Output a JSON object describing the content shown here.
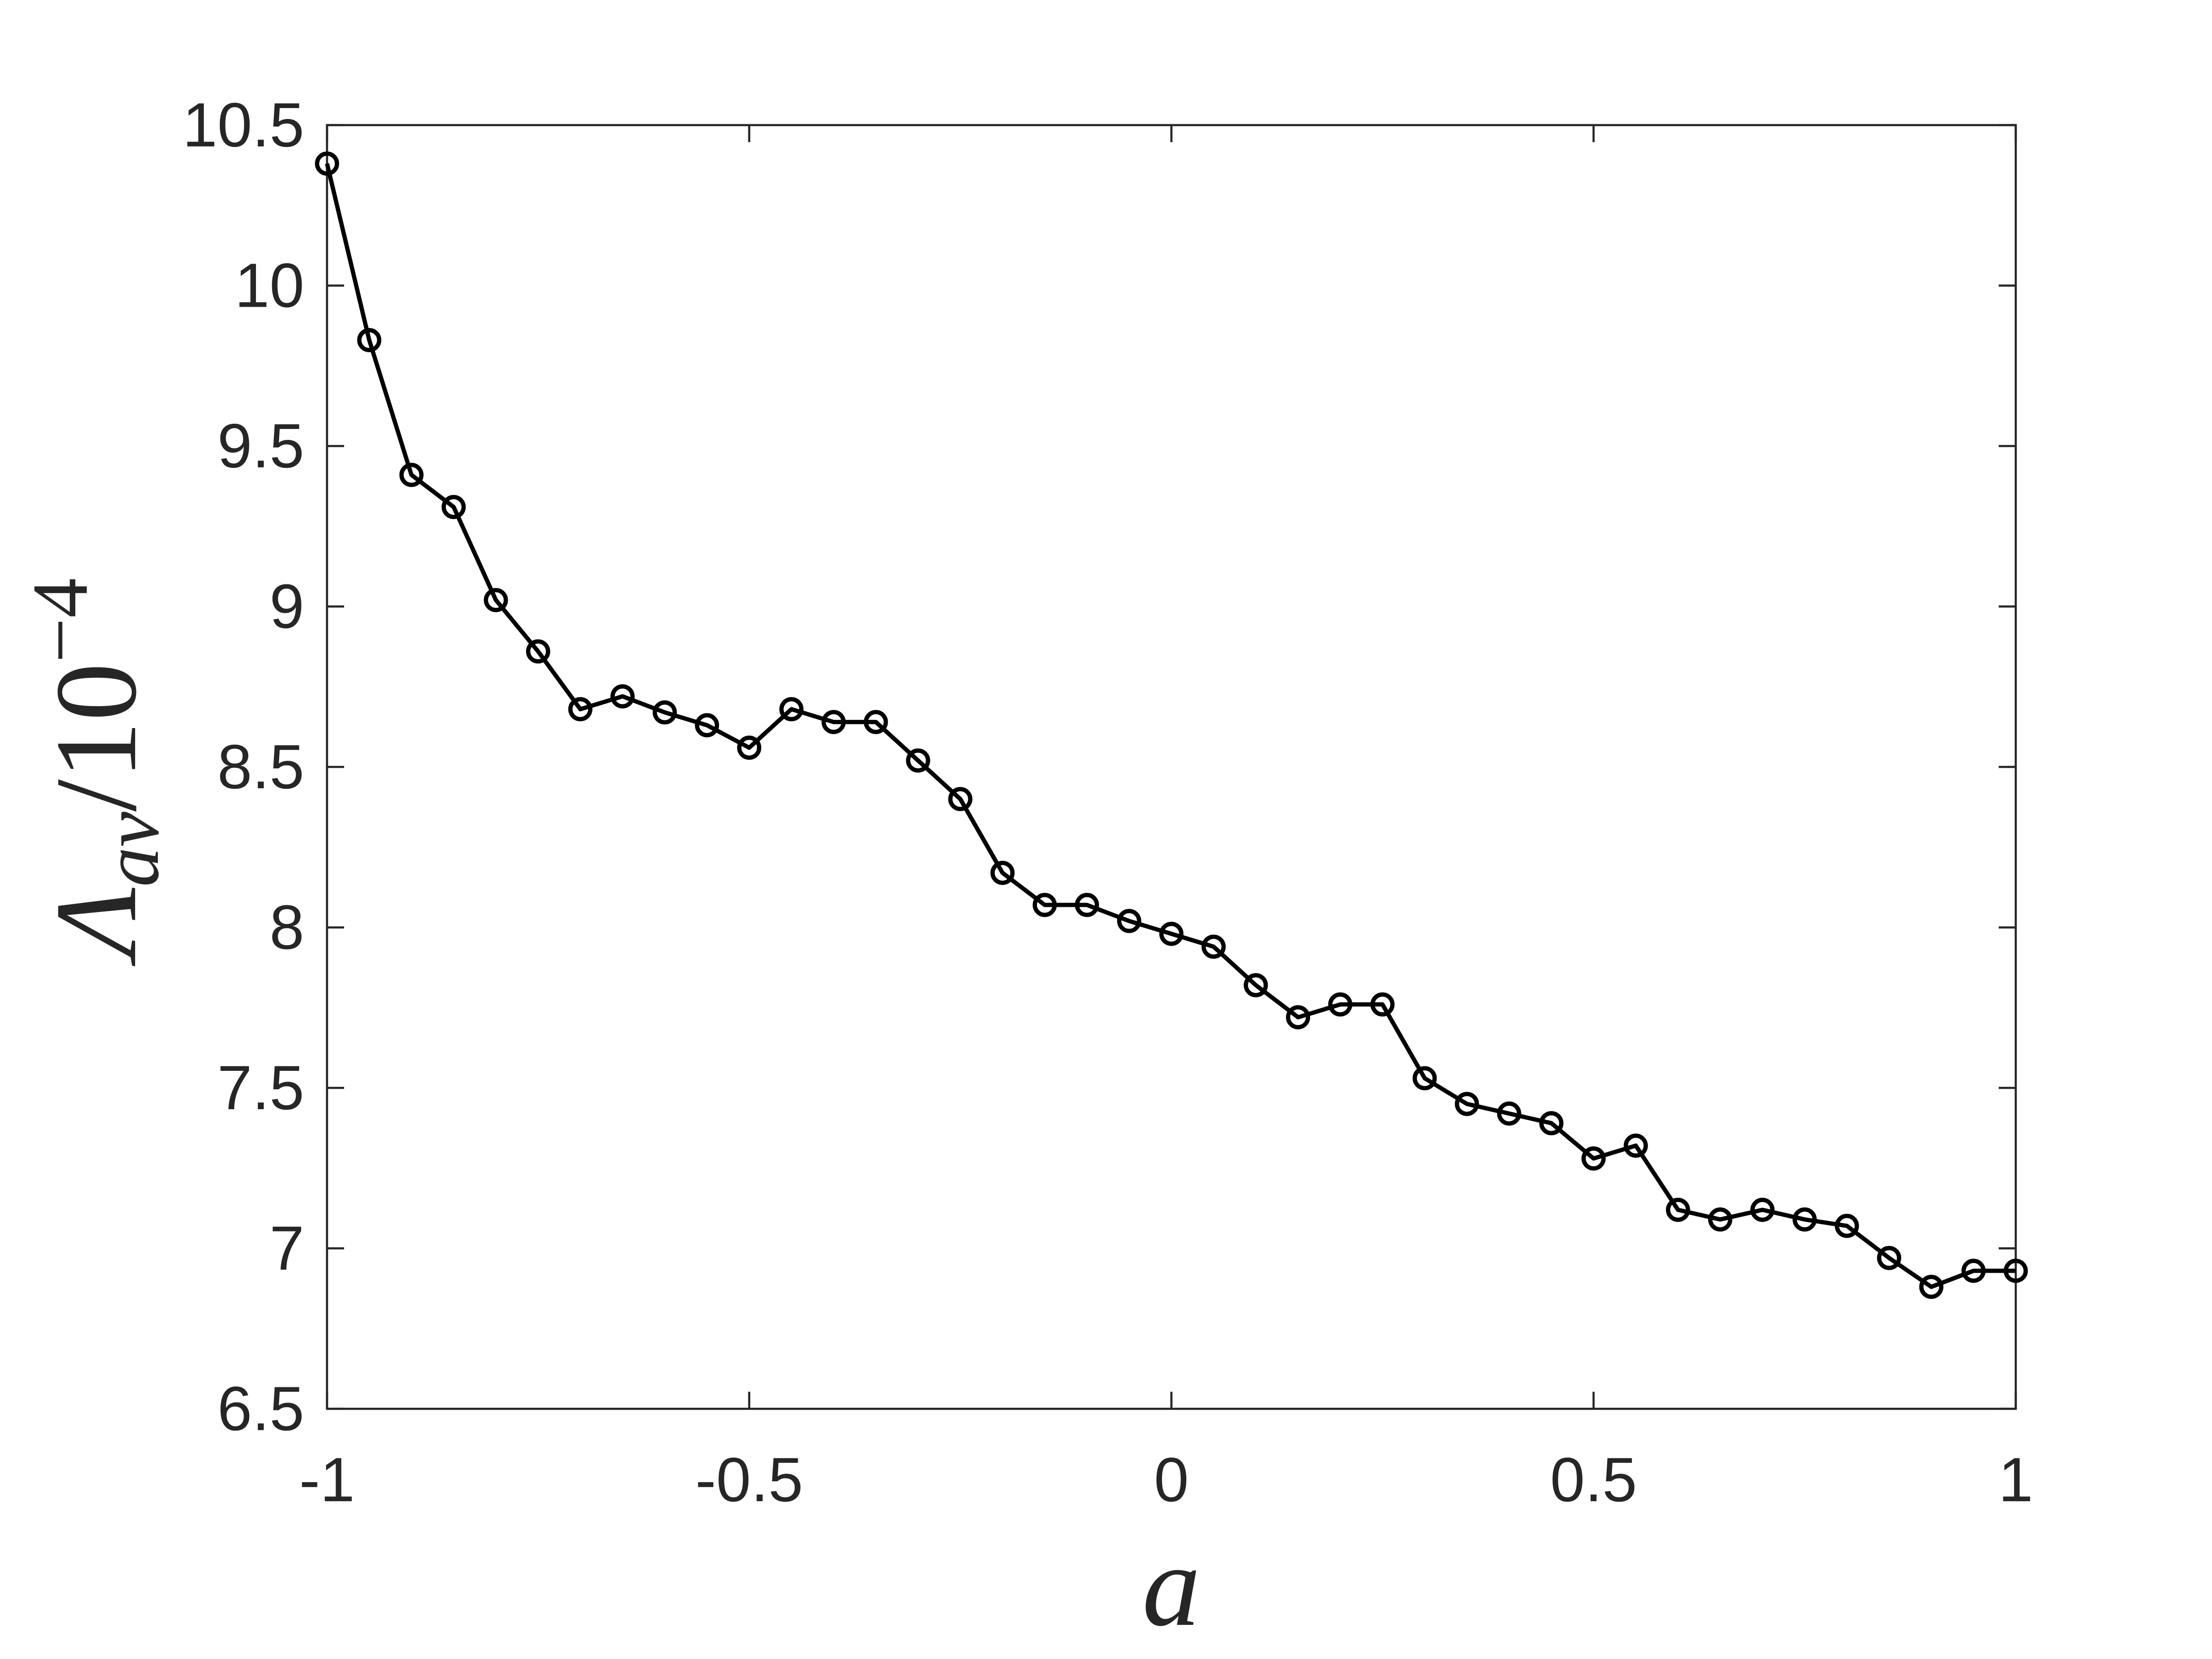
{
  "chart_data": {
    "type": "line",
    "xlabel": "a",
    "ylabel": {
      "main": "Λ",
      "sub": "av",
      "sep": "/10",
      "sup": "−4"
    },
    "x": [
      -1,
      -0.95,
      -0.9,
      -0.85,
      -0.8,
      -0.75,
      -0.7,
      -0.65,
      -0.6,
      -0.55,
      -0.5,
      -0.45,
      -0.4,
      -0.35,
      -0.3,
      -0.25,
      -0.2,
      -0.15,
      -0.1,
      -0.05,
      0,
      0.05,
      0.1,
      0.15,
      0.2,
      0.25,
      0.3,
      0.35,
      0.4,
      0.45,
      0.5,
      0.55,
      0.6,
      0.65,
      0.7,
      0.75,
      0.8,
      0.85,
      0.9,
      0.95,
      1
    ],
    "values": [
      10.38,
      9.83,
      9.41,
      9.31,
      9.02,
      8.86,
      8.68,
      8.72,
      8.67,
      8.63,
      8.56,
      8.68,
      8.64,
      8.64,
      8.52,
      8.4,
      8.17,
      8.07,
      8.07,
      8.02,
      7.98,
      7.94,
      7.82,
      7.72,
      7.76,
      7.76,
      7.53,
      7.45,
      7.42,
      7.39,
      7.28,
      7.32,
      7.12,
      7.09,
      7.12,
      7.09,
      7.07,
      6.97,
      6.88,
      6.93,
      6.93
    ],
    "color": "#000000",
    "marker": "circle",
    "xlim": [
      -1,
      1
    ],
    "xticks": [
      -1,
      -0.5,
      0,
      0.5,
      1
    ],
    "ylim": [
      6.5,
      10.5
    ],
    "yticks": [
      6.5,
      7,
      7.5,
      8,
      8.5,
      9,
      9.5,
      10,
      10.5
    ],
    "grid": false
  }
}
